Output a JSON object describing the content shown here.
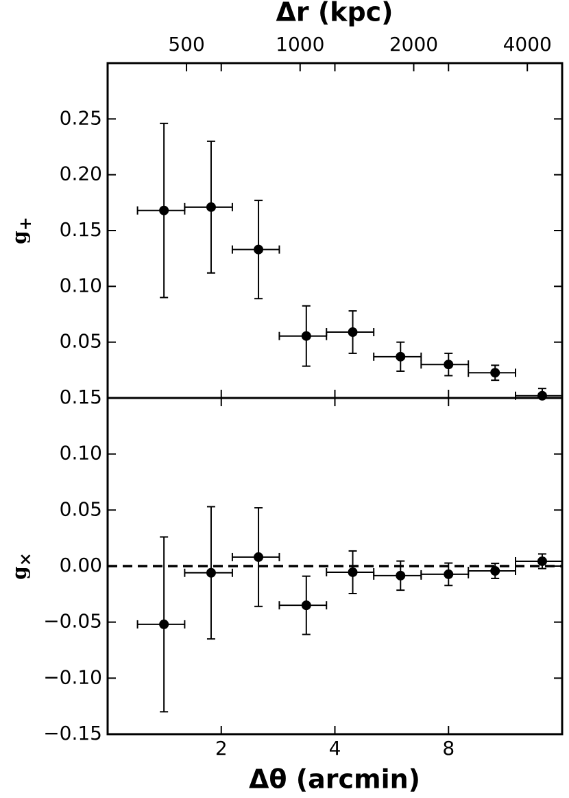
{
  "chart_data": {
    "type": "errorbar",
    "xlabel": "Δθ (arcmin)",
    "x2label": "Δr (kpc)",
    "xlim": [
      1,
      16
    ],
    "xticks": [
      2,
      4,
      8
    ],
    "log_x": true,
    "x2lim": [
      309,
      4947
    ],
    "x2ticks": [
      500,
      1000,
      2000,
      4000
    ],
    "color": "#000000",
    "bin_edges": [
      1.2,
      1.6,
      2.14,
      2.85,
      3.8,
      5.07,
      6.77,
      9.03,
      12.04,
      16.05
    ],
    "x": [
      1.41,
      1.88,
      2.51,
      3.36,
      4.46,
      5.97,
      8.0,
      10.63,
      14.17
    ],
    "panels": [
      {
        "ylabel": {
          "main": "g",
          "sub": "+"
        },
        "ylim": [
          0,
          0.3
        ],
        "yticks": [
          0.05,
          0.1,
          0.15,
          0.2,
          0.25
        ],
        "ytick_labels": [
          "0.05",
          "0.10",
          "0.15",
          "0.20",
          "0.25"
        ],
        "values": [
          0.168,
          0.171,
          0.133,
          0.0555,
          0.059,
          0.037,
          0.03,
          0.0226,
          0.002
        ],
        "yerr": [
          0.078,
          0.059,
          0.044,
          0.027,
          0.019,
          0.013,
          0.01,
          0.0067,
          0.0065
        ]
      },
      {
        "ylabel": {
          "main": "g",
          "sub": "×"
        },
        "ylim": [
          -0.15,
          0.15
        ],
        "yticks": [
          {
            "value": -0.15,
            "label": "−0.15"
          },
          {
            "value": -0.1,
            "label": "−0.10"
          },
          {
            "value": -0.05,
            "label": "−0.05"
          },
          {
            "value": 0,
            "label": "0.00"
          },
          {
            "value": 0.05,
            "label": "0.05"
          },
          {
            "value": 0.1,
            "label": "0.10"
          },
          {
            "value": 0.15,
            "label": "0.15"
          }
        ],
        "hline": 0,
        "values": [
          -0.052,
          -0.006,
          0.008,
          -0.035,
          -0.0055,
          -0.0085,
          -0.0073,
          -0.0043,
          0.0043
        ],
        "yerr": [
          0.078,
          0.059,
          0.044,
          0.026,
          0.019,
          0.013,
          0.01,
          0.0067,
          0.0065
        ]
      }
    ]
  }
}
